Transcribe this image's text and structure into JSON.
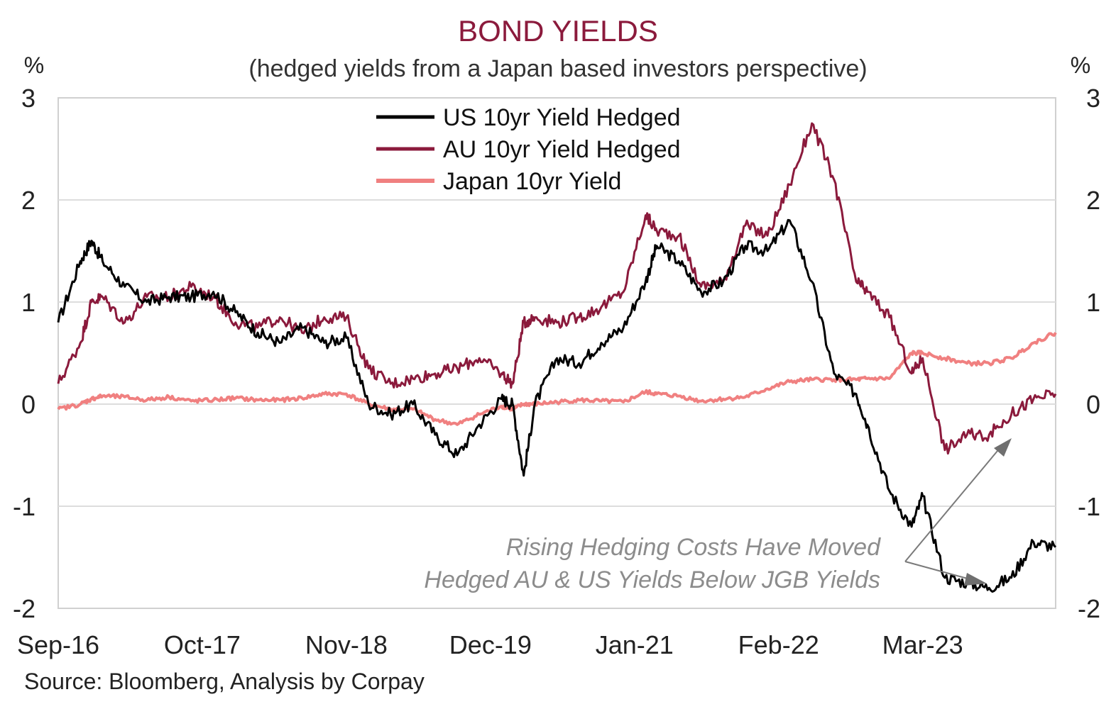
{
  "chart_data": {
    "type": "line",
    "title": "BOND YIELDS",
    "subtitle": "(hedged yields from a Japan based investors perspective)",
    "ylabel_left": "%",
    "ylabel_right": "%",
    "ylim": [
      -2,
      3
    ],
    "yticks": [
      "3",
      "2",
      "1",
      "0",
      "-1",
      "-2"
    ],
    "x_tick_labels": [
      "Sep-16",
      "Oct-17",
      "Nov-18",
      "Dec-19",
      "Jan-21",
      "Feb-22",
      "Mar-23"
    ],
    "x_range": [
      "Sep-16",
      "Mar-24"
    ],
    "grid": "horizontal",
    "legend_position": "top-left",
    "source": "Source: Bloomberg, Analysis by Corpay",
    "annotation": [
      "Rising Hedging Costs Have Moved",
      "Hedged AU & US Yields Below JGB Yields"
    ],
    "colors": {
      "title": "#8b1a3c",
      "us": "#000000",
      "au": "#8b1a3c",
      "jp": "#f08080",
      "grid": "#dddddd",
      "annotation": "#8c8c8c"
    },
    "series": [
      {
        "name": "US 10yr Yield Hedged",
        "x": [
          "2016-09",
          "2016-11",
          "2016-12",
          "2017-01",
          "2017-03",
          "2017-05",
          "2017-07",
          "2017-09",
          "2017-11",
          "2018-01",
          "2018-03",
          "2018-05",
          "2018-07",
          "2018-09",
          "2018-11",
          "2019-01",
          "2019-03",
          "2019-05",
          "2019-07",
          "2019-09",
          "2019-11",
          "2020-01",
          "2020-02",
          "2020-03",
          "2020-04",
          "2020-06",
          "2020-08",
          "2020-10",
          "2020-12",
          "2021-02",
          "2021-03",
          "2021-05",
          "2021-07",
          "2021-09",
          "2021-11",
          "2022-01",
          "2022-03",
          "2022-05",
          "2022-07",
          "2022-09",
          "2022-10",
          "2022-12",
          "2023-02",
          "2023-03",
          "2023-05",
          "2023-07",
          "2023-09",
          "2023-11",
          "2024-01",
          "2024-03"
        ],
        "values": [
          0.8,
          1.4,
          1.6,
          1.4,
          1.15,
          1.0,
          1.05,
          1.05,
          1.1,
          0.9,
          0.7,
          0.6,
          0.75,
          0.6,
          0.65,
          0.0,
          -0.1,
          0.0,
          -0.3,
          -0.5,
          -0.2,
          0.05,
          0.0,
          -0.7,
          0.0,
          0.45,
          0.4,
          0.6,
          0.75,
          1.2,
          1.55,
          1.4,
          1.1,
          1.2,
          1.55,
          1.5,
          1.8,
          1.2,
          0.3,
          0.1,
          -0.2,
          -0.85,
          -1.2,
          -0.9,
          -1.7,
          -1.75,
          -1.8,
          -1.7,
          -1.35,
          -1.4
        ]
      },
      {
        "name": "AU 10yr Yield Hedged",
        "x": [
          "2016-09",
          "2016-11",
          "2016-12",
          "2017-01",
          "2017-03",
          "2017-05",
          "2017-07",
          "2017-09",
          "2017-11",
          "2018-01",
          "2018-03",
          "2018-05",
          "2018-07",
          "2018-09",
          "2018-11",
          "2019-01",
          "2019-03",
          "2019-05",
          "2019-07",
          "2019-09",
          "2019-11",
          "2020-01",
          "2020-02",
          "2020-03",
          "2020-04",
          "2020-06",
          "2020-08",
          "2020-10",
          "2020-12",
          "2021-02",
          "2021-03",
          "2021-05",
          "2021-07",
          "2021-09",
          "2021-11",
          "2022-01",
          "2022-03",
          "2022-05",
          "2022-07",
          "2022-09",
          "2022-10",
          "2022-12",
          "2023-02",
          "2023-03",
          "2023-05",
          "2023-07",
          "2023-09",
          "2023-11",
          "2024-01",
          "2024-03"
        ],
        "values": [
          0.2,
          0.6,
          1.0,
          1.05,
          0.8,
          1.05,
          1.05,
          1.15,
          1.05,
          0.8,
          0.75,
          0.85,
          0.7,
          0.85,
          0.85,
          0.35,
          0.2,
          0.25,
          0.3,
          0.35,
          0.45,
          0.3,
          0.2,
          0.8,
          0.85,
          0.8,
          0.85,
          0.95,
          1.1,
          1.85,
          1.7,
          1.65,
          1.15,
          1.2,
          1.75,
          1.65,
          2.15,
          2.75,
          2.2,
          1.2,
          1.1,
          0.85,
          0.3,
          0.45,
          -0.45,
          -0.3,
          -0.3,
          -0.1,
          0.05,
          0.1
        ]
      },
      {
        "name": "Japan 10yr Yield",
        "x": [
          "2016-09",
          "2016-11",
          "2016-12",
          "2017-01",
          "2017-03",
          "2017-05",
          "2017-07",
          "2017-09",
          "2017-11",
          "2018-01",
          "2018-03",
          "2018-05",
          "2018-07",
          "2018-09",
          "2018-11",
          "2019-01",
          "2019-03",
          "2019-05",
          "2019-07",
          "2019-09",
          "2019-11",
          "2020-01",
          "2020-02",
          "2020-03",
          "2020-04",
          "2020-06",
          "2020-08",
          "2020-10",
          "2020-12",
          "2021-02",
          "2021-03",
          "2021-05",
          "2021-07",
          "2021-09",
          "2021-11",
          "2022-01",
          "2022-03",
          "2022-05",
          "2022-07",
          "2022-09",
          "2022-10",
          "2022-12",
          "2023-02",
          "2023-03",
          "2023-05",
          "2023-07",
          "2023-09",
          "2023-11",
          "2024-01",
          "2024-03"
        ],
        "values": [
          -0.05,
          0.0,
          0.05,
          0.08,
          0.07,
          0.04,
          0.07,
          0.03,
          0.04,
          0.06,
          0.04,
          0.04,
          0.06,
          0.1,
          0.1,
          0.0,
          -0.05,
          -0.05,
          -0.15,
          -0.2,
          -0.1,
          -0.02,
          -0.05,
          0.0,
          0.0,
          0.02,
          0.04,
          0.03,
          0.02,
          0.12,
          0.1,
          0.08,
          0.03,
          0.05,
          0.07,
          0.15,
          0.22,
          0.24,
          0.24,
          0.24,
          0.25,
          0.25,
          0.5,
          0.5,
          0.45,
          0.4,
          0.4,
          0.45,
          0.6,
          0.7
        ]
      }
    ]
  }
}
